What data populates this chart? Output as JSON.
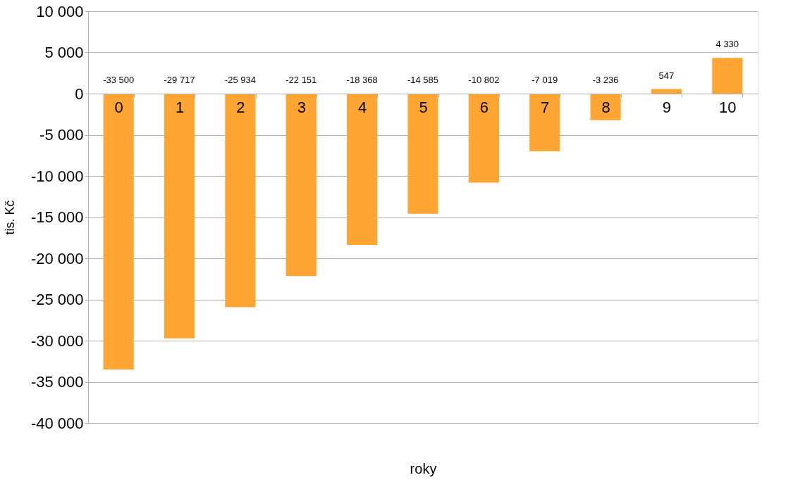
{
  "chart_data": {
    "type": "bar",
    "xlabel": "roky",
    "ylabel": "tis. Kč",
    "categories": [
      "0",
      "1",
      "2",
      "3",
      "4",
      "5",
      "6",
      "7",
      "8",
      "9",
      "10"
    ],
    "values": [
      -33500,
      -29717,
      -25934,
      -22151,
      -18368,
      -14585,
      -10802,
      -7019,
      -3236,
      547,
      4330
    ],
    "color": "#ffa533",
    "ylim": [
      -40000,
      10000
    ],
    "yticks": [
      -40000,
      -35000,
      -30000,
      -25000,
      -20000,
      -15000,
      -10000,
      -5000,
      0,
      5000,
      10000
    ],
    "grid": "y",
    "data_labels": true
  }
}
